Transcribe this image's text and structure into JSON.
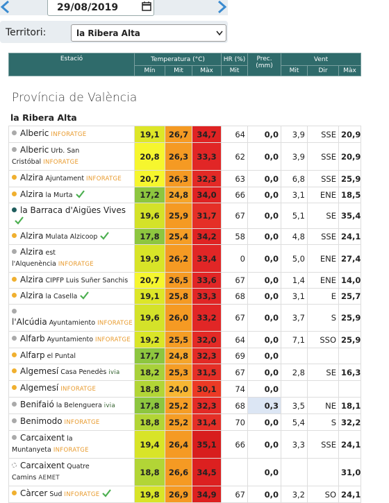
{
  "header": {
    "date": "29/08/2019",
    "territory_label": "Territori:",
    "territory": "la Ribera Alta"
  },
  "table": {
    "columns": {
      "station": "Estació",
      "temperature": "Temperatura (°C)",
      "humidity": "HR (%)",
      "precipitation": "Prec. (mm)",
      "wind": "Vent",
      "sub": [
        "Mín",
        "Mit",
        "Màx",
        "Mit",
        "Mit",
        "Dir",
        "Màx"
      ]
    },
    "province": "Província de València",
    "region": "la Ribera Alta",
    "rows": [
      {
        "name": "Alberic",
        "network": "INFORATGE",
        "network_color": "#e89a2c",
        "dot": "#aaaaaa",
        "values": [
          "19,1",
          "26,7",
          "34,7",
          "64",
          "0,0",
          "3,9",
          "SSE",
          "20,9"
        ],
        "colors": [
          "#dde628",
          "#f59a23",
          "#df2323"
        ]
      },
      {
        "name": "Alberic",
        "place": "Urb. San Cristóbal",
        "network": "INFORATGE",
        "network_color": "#e89a2c",
        "dot": "#aaaaaa",
        "values": [
          "20,8",
          "26,3",
          "33,3",
          "62",
          "0,0",
          "3,9",
          "SSE",
          "20,9"
        ],
        "colors": [
          "#f6f62e",
          "#f59a23",
          "#e12626"
        ]
      },
      {
        "name": "Alzira",
        "place": "Ajuntament",
        "network": "INFORATGE",
        "network_color": "#e89a2c",
        "dot": "#f0b030",
        "values": [
          "20,7",
          "26,3",
          "32,3",
          "63",
          "0,0",
          "6,8",
          "SSE",
          "25,9"
        ],
        "colors": [
          "#f6f62e",
          "#f59a23",
          "#e32a26"
        ]
      },
      {
        "name": "Alzira",
        "place": "la Murta",
        "check": true,
        "dot": "#f0b030",
        "values": [
          "17,2",
          "24,8",
          "34,0",
          "66",
          "0,0",
          "3,1",
          "ENE",
          "18,5"
        ],
        "colors": [
          "#8dc63f",
          "#f5a52a",
          "#df2323"
        ]
      },
      {
        "name": "la Barraca d'Aigües Vives",
        "check": true,
        "dot": "#1f5d5d",
        "values": [
          "19,6",
          "25,9",
          "31,7",
          "67",
          "0,0",
          "5,1",
          "SE",
          "35,4"
        ],
        "colors": [
          "#d4e229",
          "#f59a23",
          "#e52f27"
        ]
      },
      {
        "name": "Alzira",
        "place": "Mulata Alzicoop",
        "check": true,
        "dot": "#f0b030",
        "values": [
          "17,8",
          "25,4",
          "34,2",
          "58",
          "0,0",
          "4,8",
          "SSE",
          "24,1"
        ],
        "colors": [
          "#8dc63f",
          "#f59d25",
          "#df2323"
        ]
      },
      {
        "name": "Alzira",
        "place": "est l'Alquenència",
        "network": "INFORATGE",
        "network_color": "#e89a2c",
        "dot": "#aaaaaa",
        "values": [
          "19,9",
          "26,2",
          "33,4",
          "0",
          "0,0",
          "5,0",
          "ENE",
          "27,4"
        ],
        "colors": [
          "#d8e428",
          "#f59a23",
          "#e12626"
        ]
      },
      {
        "name": "Alzira",
        "place": "CIPFP Luis Suñer Sanchis",
        "dot": "#f0b030",
        "values": [
          "20,7",
          "26,5",
          "33,6",
          "67",
          "0,0",
          "1,4",
          "ENE",
          "14,0"
        ],
        "colors": [
          "#f6f62e",
          "#f59a23",
          "#e12626"
        ]
      },
      {
        "name": "Alzira",
        "place": "la Casella",
        "check": true,
        "dot": "#f0b030",
        "values": [
          "19,1",
          "25,8",
          "33,3",
          "68",
          "0,0",
          "3,1",
          "E",
          "25,7"
        ],
        "colors": [
          "#dde628",
          "#f59a23",
          "#e12626"
        ]
      },
      {
        "name": "l'Alcúdia",
        "place": "Ayuntamiento",
        "network": "INFORATGE",
        "network_color": "#e89a2c",
        "dot": "#aaaaaa",
        "values": [
          "19,6",
          "26,0",
          "33,2",
          "67",
          "0,0",
          "3,7",
          "S",
          "25,9"
        ],
        "colors": [
          "#d4e229",
          "#f59a23",
          "#e12626"
        ]
      },
      {
        "name": "Alfarb",
        "place": "Ayuntamiento",
        "network": "INFORATGE",
        "network_color": "#e89a2c",
        "dot": "#aaaaaa",
        "values": [
          "19,2",
          "25,5",
          "32,0",
          "64",
          "0,0",
          "7,1",
          "SSO",
          "25,9"
        ],
        "colors": [
          "#dae528",
          "#f59d25",
          "#e32a26"
        ]
      },
      {
        "name": "Alfarp",
        "place": "el Puntal",
        "dot": "#f0b030",
        "values": [
          "17,7",
          "24,8",
          "32,3",
          "69",
          "0,0",
          null,
          null,
          null
        ],
        "colors": [
          "#8dc63f",
          "#f5a52a",
          "#e32a26"
        ]
      },
      {
        "name": "Algemesí",
        "place": "Casa Penedès",
        "network": "ivia",
        "network_color": "#2e5e2a",
        "dot": "#f0b030",
        "values": [
          "18,2",
          "25,3",
          "31,5",
          "67",
          "0,0",
          "2,8",
          "SE",
          "16,3"
        ],
        "colors": [
          "#a8d13a",
          "#f59d25",
          "#e52f27"
        ]
      },
      {
        "name": "Algemesí",
        "network": "INFORATGE",
        "network_color": "#e89a2c",
        "dot": "#f0b030",
        "values": [
          "18,8",
          "24,0",
          "30,1",
          "74",
          "0,0",
          null,
          null,
          null
        ],
        "colors": [
          "#b2d536",
          "#f7b733",
          "#ec3a25"
        ]
      },
      {
        "name": "Benifaió",
        "place": "la Belenguera",
        "network": "ivia",
        "network_color": "#2e5e2a",
        "dot": "#aaaaaa",
        "prec_color": "#dce6f4",
        "values": [
          "17,8",
          "25,2",
          "32,3",
          "68",
          "0,3",
          "3,5",
          "NE",
          "18,1"
        ],
        "colors": [
          "#8dc63f",
          "#f59d25",
          "#e32a26"
        ]
      },
      {
        "name": "Benimodo",
        "network": "INFORATGE",
        "network_color": "#e89a2c",
        "dot": "#aaaaaa",
        "values": [
          "18,8",
          "25,2",
          "31,4",
          "70",
          "0,0",
          "5,4",
          "S",
          "32,2"
        ],
        "colors": [
          "#b2d536",
          "#f59d25",
          "#e52f27"
        ]
      },
      {
        "name": "Carcaixent",
        "place": "la Muntanyeta",
        "network": "INFORATGE",
        "network_color": "#e89a2c",
        "dot": "#aaaaaa",
        "values": [
          "19,4",
          "26,4",
          "35,1",
          "66",
          "0,0",
          "3,3",
          "SSE",
          "24,1"
        ],
        "colors": [
          "#d8e428",
          "#f59a23",
          "#d81d1d"
        ]
      },
      {
        "name": "Carcaixent",
        "place": "Quatre Camins",
        "network": "AEMET",
        "network_color": "#333333",
        "dot": "#ffffff",
        "values": [
          "18,8",
          "26,6",
          "34,5",
          null,
          "0,0",
          null,
          null,
          "31,0"
        ],
        "colors": [
          "#b2d536",
          "#f59a23",
          "#dc2020"
        ]
      },
      {
        "name": "Càrcer",
        "place": "Sud",
        "network": "INFORATGE",
        "network_color": "#e89a2c",
        "check": true,
        "dot": "#f0b030",
        "values": [
          "19,8",
          "26,9",
          "34,9",
          "67",
          "0,0",
          "3,2",
          "SO",
          "24,1"
        ],
        "colors": [
          "#d8e428",
          "#f59a23",
          "#dc2020"
        ]
      }
    ]
  }
}
